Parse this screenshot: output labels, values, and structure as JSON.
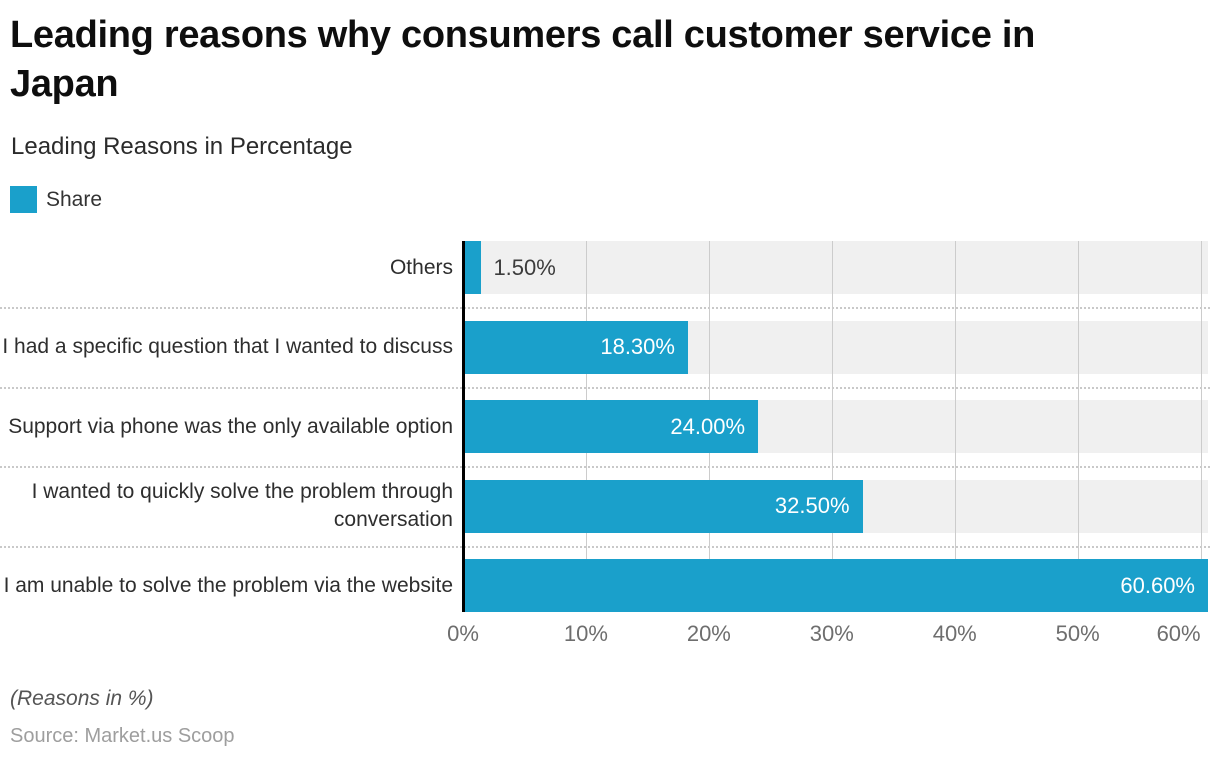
{
  "header": {
    "title": "Leading reasons why consumers call customer service in Japan",
    "title_lines": [
      "Leading reasons why consumers call customer service in",
      "Japan"
    ],
    "subtitle": "Leading Reasons in Percentage"
  },
  "legend": {
    "label": "Share"
  },
  "chart_data": {
    "type": "bar",
    "orientation": "horizontal",
    "title": "Leading reasons why consumers call customer service in Japan",
    "subtitle": "Leading Reasons in Percentage",
    "categories": [
      "Others",
      "I had a specific question that I wanted to discuss",
      "Support via phone was the only available option",
      "I wanted to quickly solve the problem through conversation",
      "I am unable to solve the problem via the website"
    ],
    "series": [
      {
        "name": "Share",
        "values": [
          1.5,
          18.3,
          24.0,
          32.5,
          60.6
        ]
      }
    ],
    "value_labels": [
      "1.50%",
      "18.30%",
      "24.00%",
      "32.50%",
      "60.60%"
    ],
    "x_ticks": [
      {
        "value": 0,
        "label": "0%"
      },
      {
        "value": 10,
        "label": "10%"
      },
      {
        "value": 20,
        "label": "20%"
      },
      {
        "value": 30,
        "label": "30%"
      },
      {
        "value": 40,
        "label": "40%"
      },
      {
        "value": 50,
        "label": "50%"
      },
      {
        "value": 60,
        "label": "60%"
      }
    ],
    "xlim": [
      0,
      60.6
    ],
    "xlabel": "",
    "ylabel": "",
    "grid": true,
    "legend_position": "top-left",
    "colors": {
      "bar": "#1AA0CB",
      "track": "#F0F0F0",
      "gridline": "#CCCCCC",
      "axis_line": "#000000",
      "value_label_inside": "#FFFFFF",
      "value_label_outside": "#3C3C3C"
    }
  },
  "footer": {
    "note": "(Reasons in %)",
    "source": "Source: Market.us Scoop"
  }
}
